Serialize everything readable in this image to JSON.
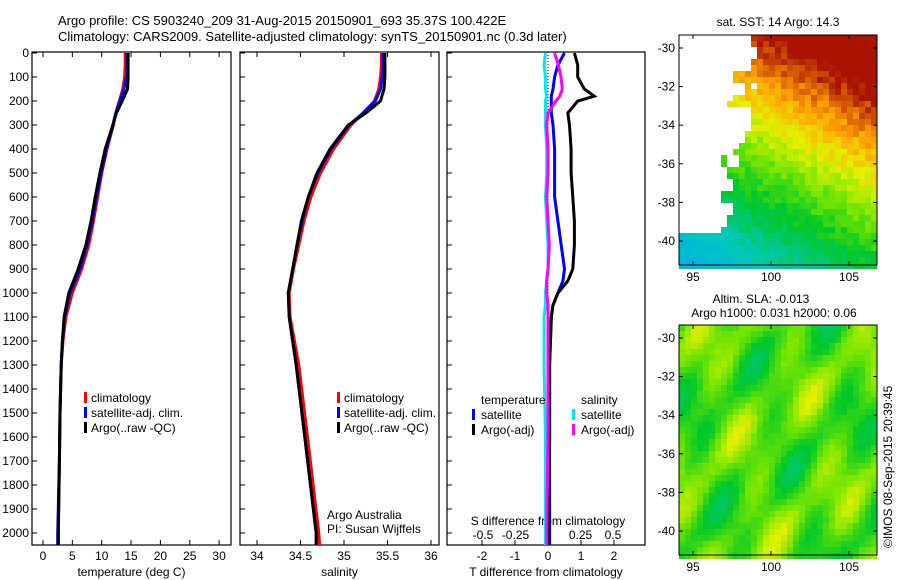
{
  "header": {
    "line1": "Argo profile: CS 5903240_209 31-Aug-2015 20150901_693 35.37S 100.422E",
    "line2": "Climatology: CARS2009. Satellite-adjusted climatology: synTS_20150901.nc (0.3d later)"
  },
  "credit": "Argo Australia",
  "pi": "PI: Susan Wijffels",
  "stamp": "©IMOS 08-Sep-2015 20:39:45",
  "colors": {
    "climatology": "#ff0000",
    "satellite": "#0000ff",
    "argo": "#000000",
    "sal_satellite": "#00e5ee",
    "sal_argo": "#ff00ff"
  },
  "chart_data": [
    {
      "type": "line",
      "title": "",
      "xlabel": "temperature (deg C)",
      "ylabel": "",
      "xlim": [
        -2,
        32
      ],
      "ylim": [
        2050,
        0
      ],
      "xticks": [
        "0",
        "5",
        "10",
        "15",
        "20",
        "25",
        "30"
      ],
      "yticks": [
        "0",
        "100",
        "200",
        "300",
        "400",
        "500",
        "600",
        "700",
        "800",
        "900",
        "1000",
        "1100",
        "1200",
        "1300",
        "1400",
        "1500",
        "1600",
        "1700",
        "1800",
        "1900",
        "2000"
      ],
      "legend": [
        "climatology",
        "satellite-adj. clim.",
        "Argo(..raw -QC)"
      ],
      "depth": [
        0,
        50,
        100,
        150,
        200,
        250,
        300,
        400,
        500,
        600,
        700,
        800,
        900,
        1000,
        1100,
        1200,
        1300,
        1500,
        1700,
        2000,
        2050
      ],
      "series": [
        {
          "name": "climatology",
          "values": [
            14.0,
            14.0,
            13.9,
            13.6,
            13.0,
            12.4,
            12.0,
            10.9,
            10.0,
            9.3,
            8.6,
            7.8,
            6.6,
            5.0,
            3.9,
            3.4,
            3.1,
            2.9,
            2.8,
            2.6,
            2.6
          ]
        },
        {
          "name": "satellite-adj. clim.",
          "values": [
            14.3,
            14.3,
            14.2,
            13.8,
            13.1,
            12.4,
            11.9,
            10.8,
            9.9,
            9.1,
            8.4,
            7.5,
            6.3,
            4.6,
            3.7,
            3.3,
            3.1,
            2.9,
            2.8,
            2.5,
            2.5
          ]
        },
        {
          "name": "Argo(..raw -QC)",
          "values": [
            14.5,
            14.5,
            14.5,
            14.4,
            13.5,
            12.5,
            11.9,
            10.6,
            9.7,
            8.9,
            8.2,
            7.3,
            6.0,
            4.4,
            3.6,
            3.3,
            3.1,
            2.9,
            2.8,
            2.6,
            2.6
          ]
        }
      ]
    },
    {
      "type": "line",
      "xlabel": "salinity",
      "xlim": [
        33.8,
        36.1
      ],
      "ylim": [
        2050,
        0
      ],
      "xticks": [
        "34",
        "34.5",
        "35",
        "35.5",
        "36"
      ],
      "legend": [
        "climatology",
        "satellite-adj. clim.",
        "Argo(..raw -QC)"
      ],
      "depth": [
        0,
        50,
        100,
        150,
        200,
        250,
        300,
        400,
        500,
        600,
        700,
        800,
        900,
        1000,
        1100,
        1300,
        1600,
        2000,
        2050
      ],
      "series": [
        {
          "name": "climatology",
          "values": [
            35.43,
            35.43,
            35.42,
            35.4,
            35.35,
            35.22,
            35.08,
            34.88,
            34.73,
            34.62,
            34.54,
            34.48,
            34.42,
            34.37,
            34.38,
            34.48,
            34.58,
            34.71,
            34.72
          ]
        },
        {
          "name": "satellite-adj. clim.",
          "values": [
            35.45,
            35.45,
            35.44,
            35.42,
            35.36,
            35.22,
            35.06,
            34.85,
            34.7,
            34.59,
            34.52,
            34.46,
            34.41,
            34.36,
            34.37,
            34.45,
            34.55,
            34.68,
            34.68
          ]
        },
        {
          "name": "Argo(..raw -QC)",
          "values": [
            35.47,
            35.47,
            35.47,
            35.46,
            35.42,
            35.25,
            35.05,
            34.84,
            34.69,
            34.59,
            34.51,
            34.46,
            34.41,
            34.36,
            34.37,
            34.45,
            34.55,
            34.68,
            34.68
          ]
        }
      ]
    },
    {
      "type": "line",
      "xlabel": "T difference from climatology",
      "x2label": "S difference from climatology",
      "xlim": [
        -3,
        3
      ],
      "ylim": [
        2050,
        0
      ],
      "xticks": [
        "-2",
        "-1",
        "0",
        "1",
        "2"
      ],
      "x2ticks": [
        "-0.5",
        "-0.25",
        "0",
        "0.25",
        "0.5"
      ],
      "legend_groups": [
        {
          "title": "temperature",
          "items": [
            "satellite",
            "Argo(-adj)"
          ]
        },
        {
          "title": "salinity",
          "items": [
            "satellite",
            "Argo(-adj)"
          ]
        }
      ],
      "depth": [
        0,
        50,
        100,
        150,
        180,
        200,
        250,
        300,
        400,
        500,
        600,
        700,
        800,
        900,
        950,
        1000,
        1050,
        1100,
        1300,
        1600,
        2000,
        2050
      ],
      "series": [
        {
          "name": "temperature satellite",
          "units": "T",
          "values": [
            0.5,
            0.3,
            0.2,
            0.15,
            0.1,
            0.1,
            0.1,
            0.15,
            0.2,
            0.2,
            0.2,
            0.3,
            0.4,
            0.5,
            0.45,
            0.3,
            0.15,
            0.1,
            0.05,
            0.05,
            0.05,
            0.05
          ]
        },
        {
          "name": "temperature Argo(-adj)",
          "units": "T",
          "values": [
            0.8,
            0.9,
            0.9,
            1.1,
            1.4,
            0.9,
            0.6,
            0.65,
            0.7,
            0.7,
            0.75,
            0.8,
            0.8,
            0.75,
            0.6,
            0.3,
            0.15,
            0.1,
            0.05,
            0.05,
            0.02,
            0.02
          ]
        },
        {
          "name": "salinity satellite",
          "units": "S",
          "values": [
            -0.02,
            -0.03,
            -0.02,
            -0.02,
            -0.01,
            -0.02,
            -0.02,
            -0.02,
            -0.01,
            -0.01,
            -0.02,
            -0.01,
            0.0,
            0.0,
            -0.01,
            -0.02,
            -0.02,
            -0.03,
            -0.03,
            -0.02,
            -0.02,
            -0.02
          ]
        },
        {
          "name": "salinity Argo(-adj)",
          "units": "S",
          "values": [
            0.05,
            0.08,
            0.1,
            0.11,
            0.09,
            0.06,
            0.0,
            -0.01,
            0.0,
            0.0,
            -0.01,
            0.0,
            0.01,
            0.0,
            -0.01,
            -0.01,
            0.0,
            0.0,
            0.0,
            0.0,
            -0.01,
            -0.01
          ]
        }
      ]
    },
    {
      "type": "heatmap",
      "title": "sat. SST: 14 Argo: 14.3",
      "xlim": [
        94.2,
        106.8
      ],
      "ylim": [
        -41.3,
        -29.3
      ],
      "xticks": [
        "95",
        "100",
        "105"
      ],
      "yticks": [
        "-30",
        "-32",
        "-34",
        "-36",
        "-38",
        "-40"
      ]
    },
    {
      "type": "heatmap",
      "title": "Altim. SLA: -0.013",
      "subtitle": "Argo h1000: 0.031 h2000: 0.06",
      "xlim": [
        94.2,
        106.8
      ],
      "ylim": [
        -41.3,
        -29.3
      ],
      "xticks": [
        "95",
        "100",
        "105"
      ],
      "yticks": [
        "-30",
        "-32",
        "-34",
        "-36",
        "-38",
        "-40"
      ]
    }
  ]
}
